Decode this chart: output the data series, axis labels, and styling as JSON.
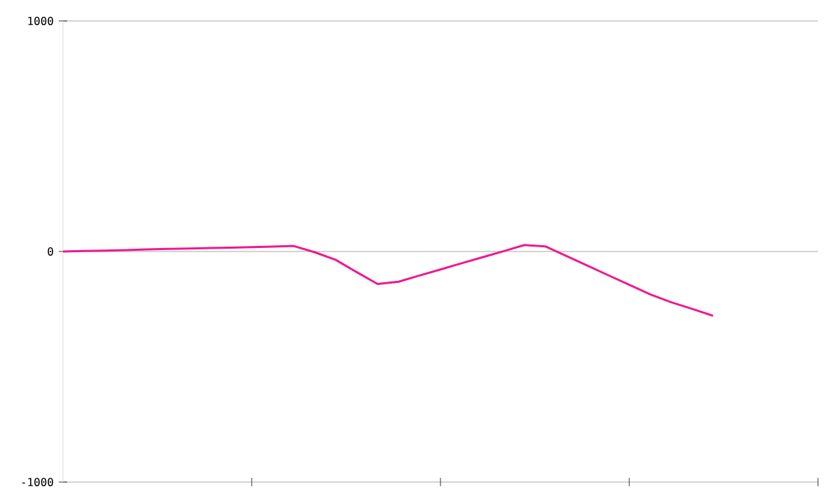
{
  "chart_data": {
    "type": "line",
    "categories": [
      null,
      null,
      null,
      null,
      null,
      null,
      null,
      null,
      null,
      null,
      null,
      null,
      null,
      null,
      null,
      null,
      null,
      null,
      null,
      null,
      null,
      null,
      null,
      null,
      null,
      null,
      null,
      null,
      null,
      null,
      null,
      null
    ],
    "values": [
      0,
      2,
      4,
      6,
      9,
      11,
      13,
      15,
      17,
      19,
      21,
      24,
      -3,
      -36,
      -89,
      -141,
      -131,
      -104,
      -78,
      -51,
      -25,
      1,
      28,
      22,
      -19,
      -61,
      -103,
      -144,
      -186,
      -220,
      -249,
      -279
    ],
    "color": "#f0188f",
    "ylim": [
      -1000,
      1000
    ],
    "yticks": [
      -1000,
      0,
      1000
    ],
    "tick_labels": "y",
    "grid": "y",
    "marker": "none",
    "line_style": "solid"
  }
}
